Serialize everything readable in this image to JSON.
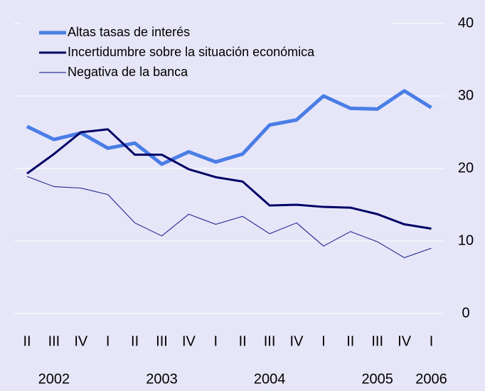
{
  "chart_data": {
    "type": "line",
    "categories": [
      "II",
      "III",
      "IV",
      "I",
      "II",
      "III",
      "IV",
      "I",
      "II",
      "III",
      "IV",
      "I",
      "II",
      "III",
      "IV",
      "I"
    ],
    "years": [
      null,
      "2002",
      null,
      null,
      null,
      "2003",
      null,
      null,
      null,
      "2004",
      null,
      null,
      null,
      "2005",
      null,
      "2006"
    ],
    "series": [
      {
        "name": "Altas tasas de interés",
        "color": "#4a7de6",
        "width": 5,
        "values": [
          25.8,
          24.0,
          24.9,
          22.8,
          23.5,
          20.6,
          22.3,
          20.9,
          22.0,
          26.0,
          26.7,
          30.0,
          28.3,
          28.2,
          30.7,
          28.4
        ]
      },
      {
        "name": "Incertidumbre sobre la situación económica",
        "color": "#000066",
        "width": 3,
        "values": [
          19.3,
          22.0,
          25.0,
          25.4,
          21.9,
          21.9,
          19.9,
          18.8,
          18.2,
          14.9,
          15.0,
          14.7,
          14.6,
          13.7,
          12.3,
          11.7
        ]
      },
      {
        "name": "Negativa de la banca",
        "color": "#333399",
        "width": 1.2,
        "values": [
          18.9,
          17.5,
          17.3,
          16.4,
          12.5,
          10.7,
          13.7,
          12.3,
          13.4,
          11.0,
          12.5,
          9.3,
          11.3,
          9.9,
          7.7,
          9.0
        ]
      }
    ],
    "ylim": [
      0,
      40
    ],
    "yticks": [
      0,
      10,
      20,
      30,
      40
    ],
    "grid": true,
    "legend": "top-left"
  }
}
